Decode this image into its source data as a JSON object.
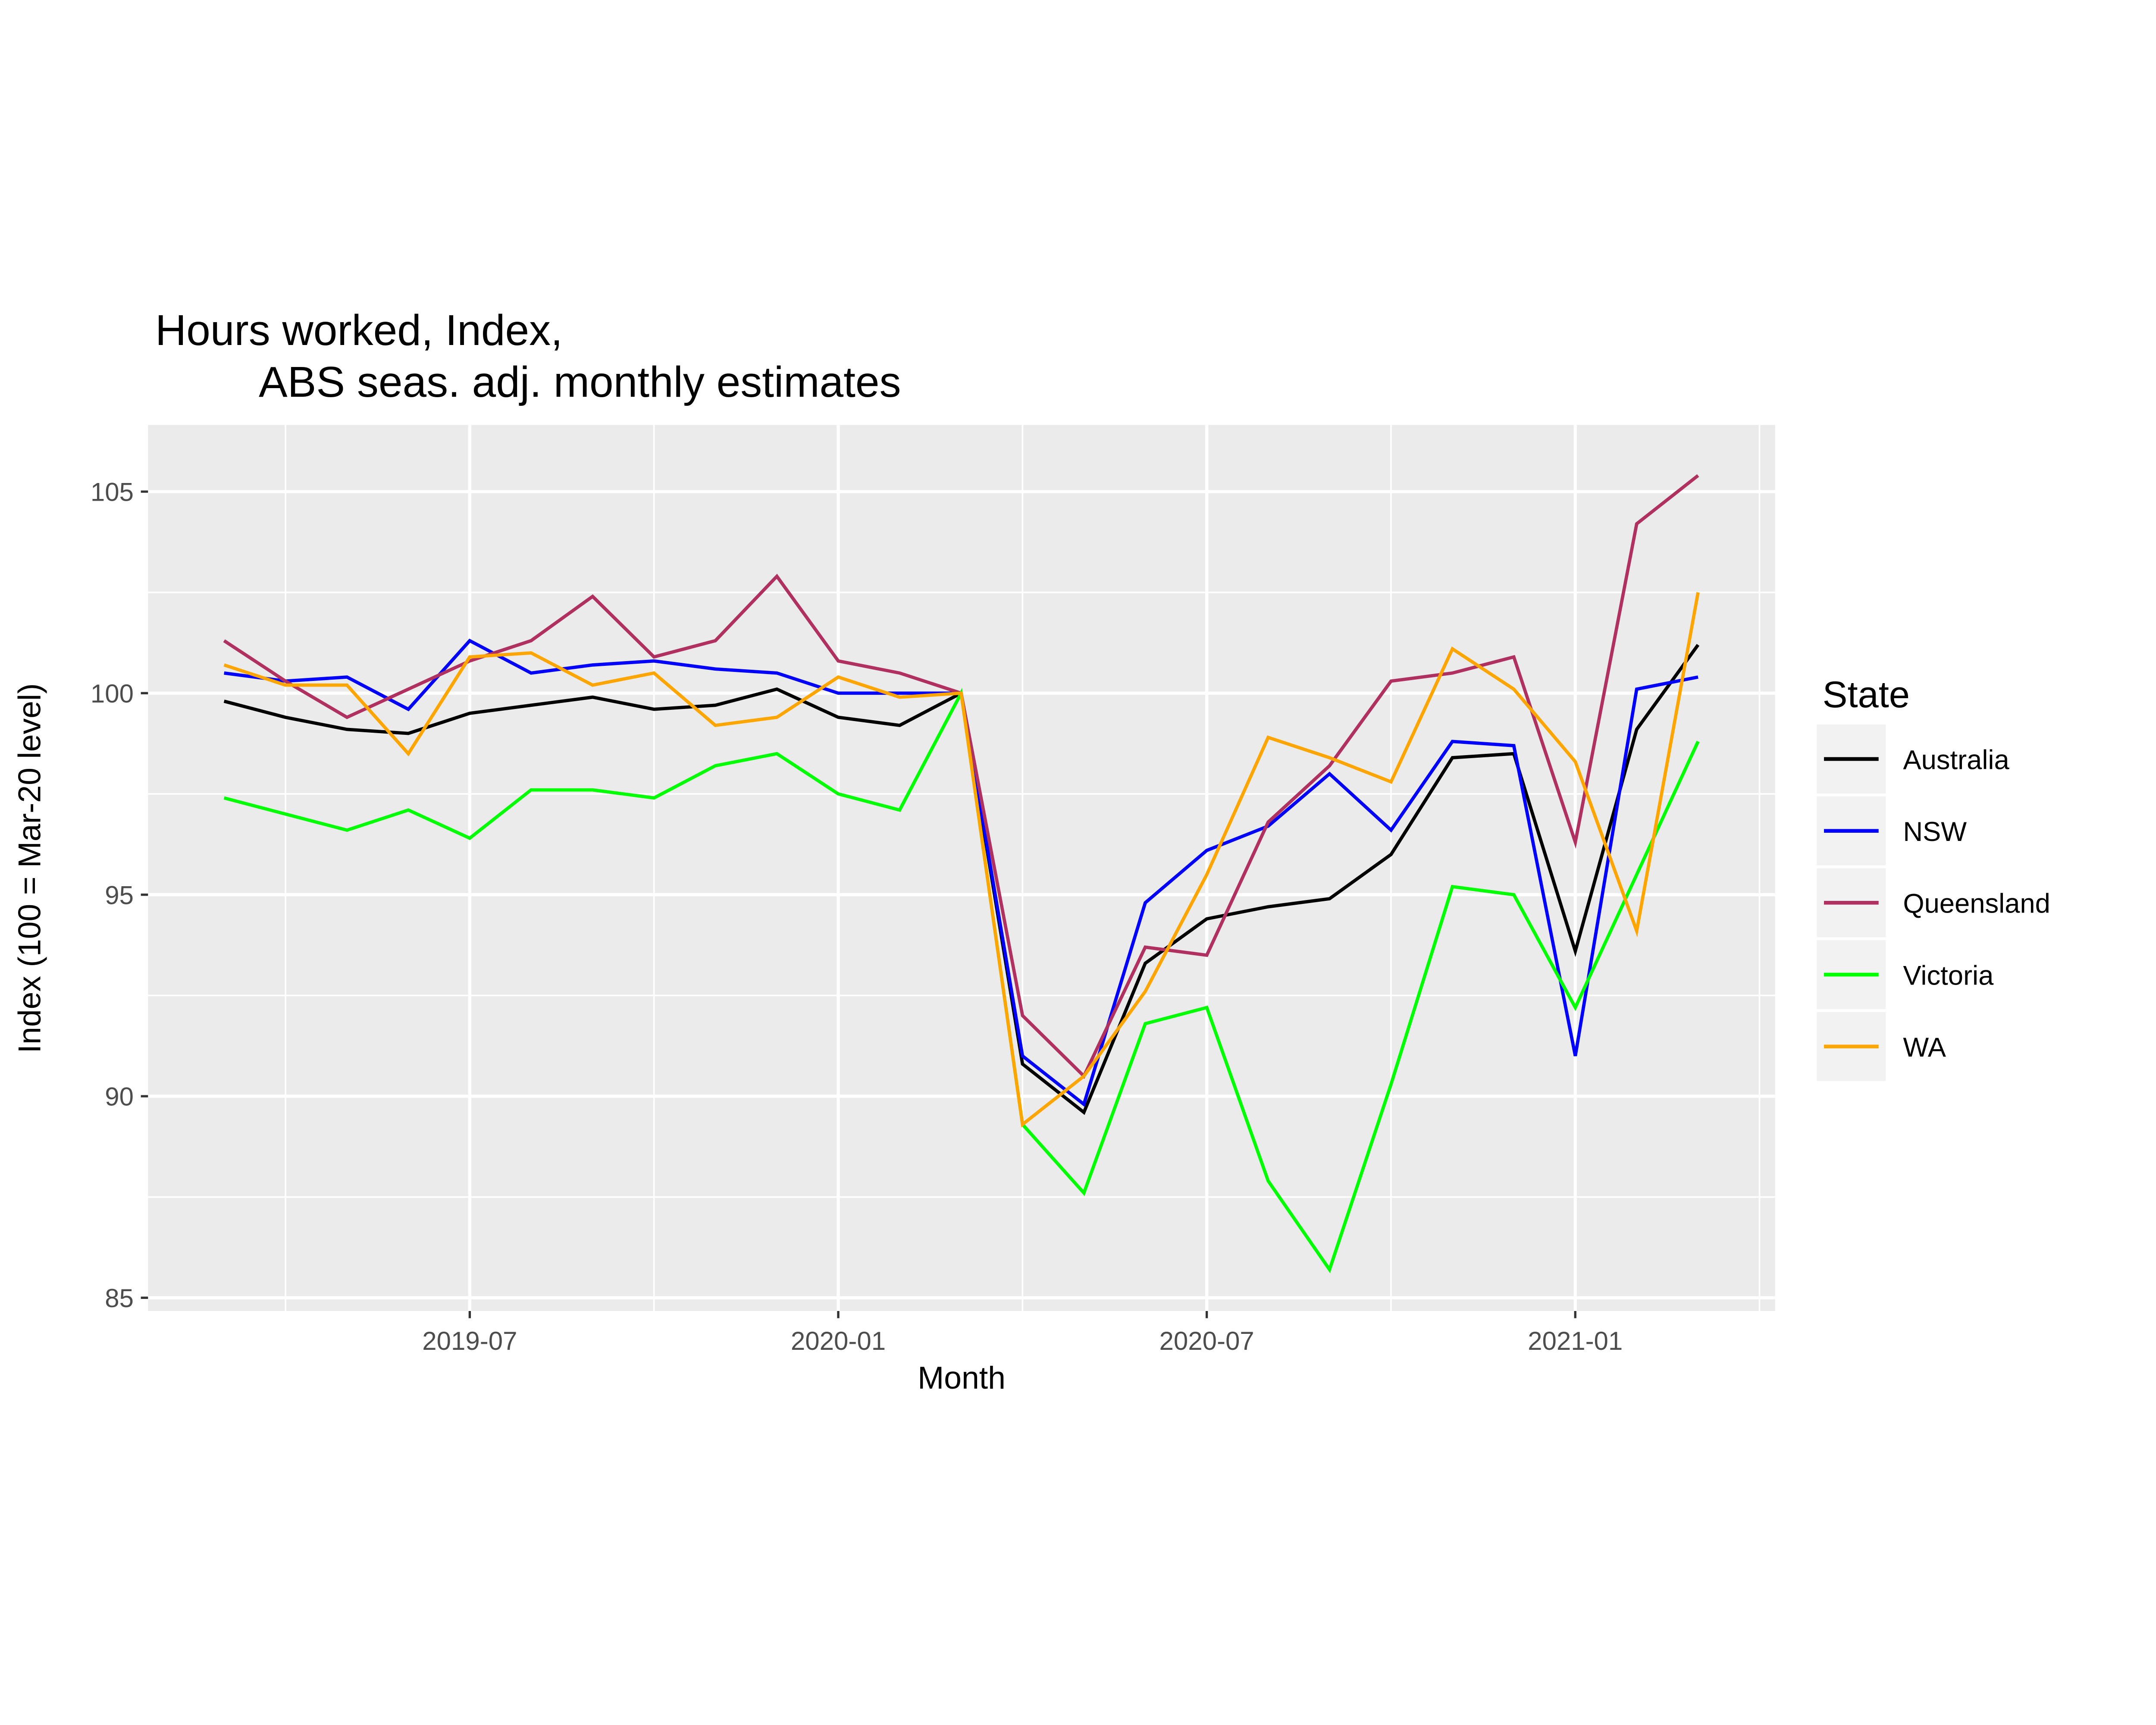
{
  "title": {
    "line1": "Hours worked, Index,",
    "line2": "ABS seas. adj. monthly estimates"
  },
  "chart_data": {
    "type": "line",
    "x": [
      "2019-03",
      "2019-04",
      "2019-05",
      "2019-06",
      "2019-07",
      "2019-08",
      "2019-09",
      "2019-10",
      "2019-11",
      "2019-12",
      "2020-01",
      "2020-02",
      "2020-03",
      "2020-04",
      "2020-05",
      "2020-06",
      "2020-07",
      "2020-08",
      "2020-09",
      "2020-10",
      "2020-11",
      "2020-12",
      "2021-01",
      "2021-02",
      "2021-03"
    ],
    "series": [
      {
        "name": "Australia",
        "color": "#000000",
        "values": [
          99.8,
          99.4,
          99.1,
          99.0,
          99.5,
          99.7,
          99.9,
          99.6,
          99.7,
          100.1,
          99.4,
          99.2,
          100,
          90.8,
          89.6,
          93.3,
          94.4,
          94.7,
          94.9,
          96.0,
          98.4,
          98.5,
          93.6,
          99.1,
          101.2
        ]
      },
      {
        "name": "NSW",
        "color": "#0000FF",
        "values": [
          100.5,
          100.3,
          100.4,
          99.6,
          101.3,
          100.5,
          100.7,
          100.8,
          100.6,
          100.5,
          100.0,
          100.0,
          100,
          91.0,
          89.8,
          94.8,
          96.1,
          96.7,
          98.0,
          96.6,
          98.8,
          98.7,
          91.0,
          100.1,
          100.4
        ]
      },
      {
        "name": "Queensland",
        "color": "#B03060",
        "values": [
          101.3,
          100.3,
          99.4,
          100.1,
          100.8,
          101.3,
          102.4,
          100.9,
          101.3,
          102.9,
          100.8,
          100.5,
          100,
          92.0,
          90.5,
          93.7,
          93.5,
          96.8,
          98.2,
          100.3,
          100.5,
          100.9,
          96.3,
          104.2,
          105.4
        ]
      },
      {
        "name": "Victoria",
        "color": "#00FF00",
        "values": [
          97.4,
          97.0,
          96.6,
          97.1,
          96.4,
          97.6,
          97.6,
          97.4,
          98.2,
          98.5,
          97.5,
          97.1,
          100,
          89.3,
          87.6,
          91.8,
          92.2,
          87.9,
          85.7,
          90.3,
          95.2,
          95.0,
          92.2,
          95.5,
          98.8
        ]
      },
      {
        "name": "WA",
        "color": "#FFA500",
        "values": [
          100.7,
          100.2,
          100.2,
          98.5,
          100.9,
          101.0,
          100.2,
          100.5,
          99.2,
          99.4,
          100.4,
          99.9,
          100,
          89.3,
          90.5,
          92.6,
          95.5,
          98.9,
          98.4,
          97.8,
          101.1,
          100.1,
          98.3,
          94.1,
          102.5
        ]
      }
    ],
    "xlabel": "Month",
    "ylabel": "Index (100 = Mar-20 level)",
    "x_ticks": [
      "2019-07",
      "2020-01",
      "2020-07",
      "2021-01"
    ],
    "y_ticks": [
      85,
      90,
      95,
      100,
      105
    ],
    "ylim": [
      84.7,
      106.65
    ],
    "legend_title": "State",
    "legend_position": "right",
    "grid": true,
    "colors": {
      "panel_bg": "#EBEBEB",
      "grid": "#FFFFFF",
      "tick_label": "#4D4D4D",
      "legend_key_bg": "#F2F2F2"
    }
  }
}
